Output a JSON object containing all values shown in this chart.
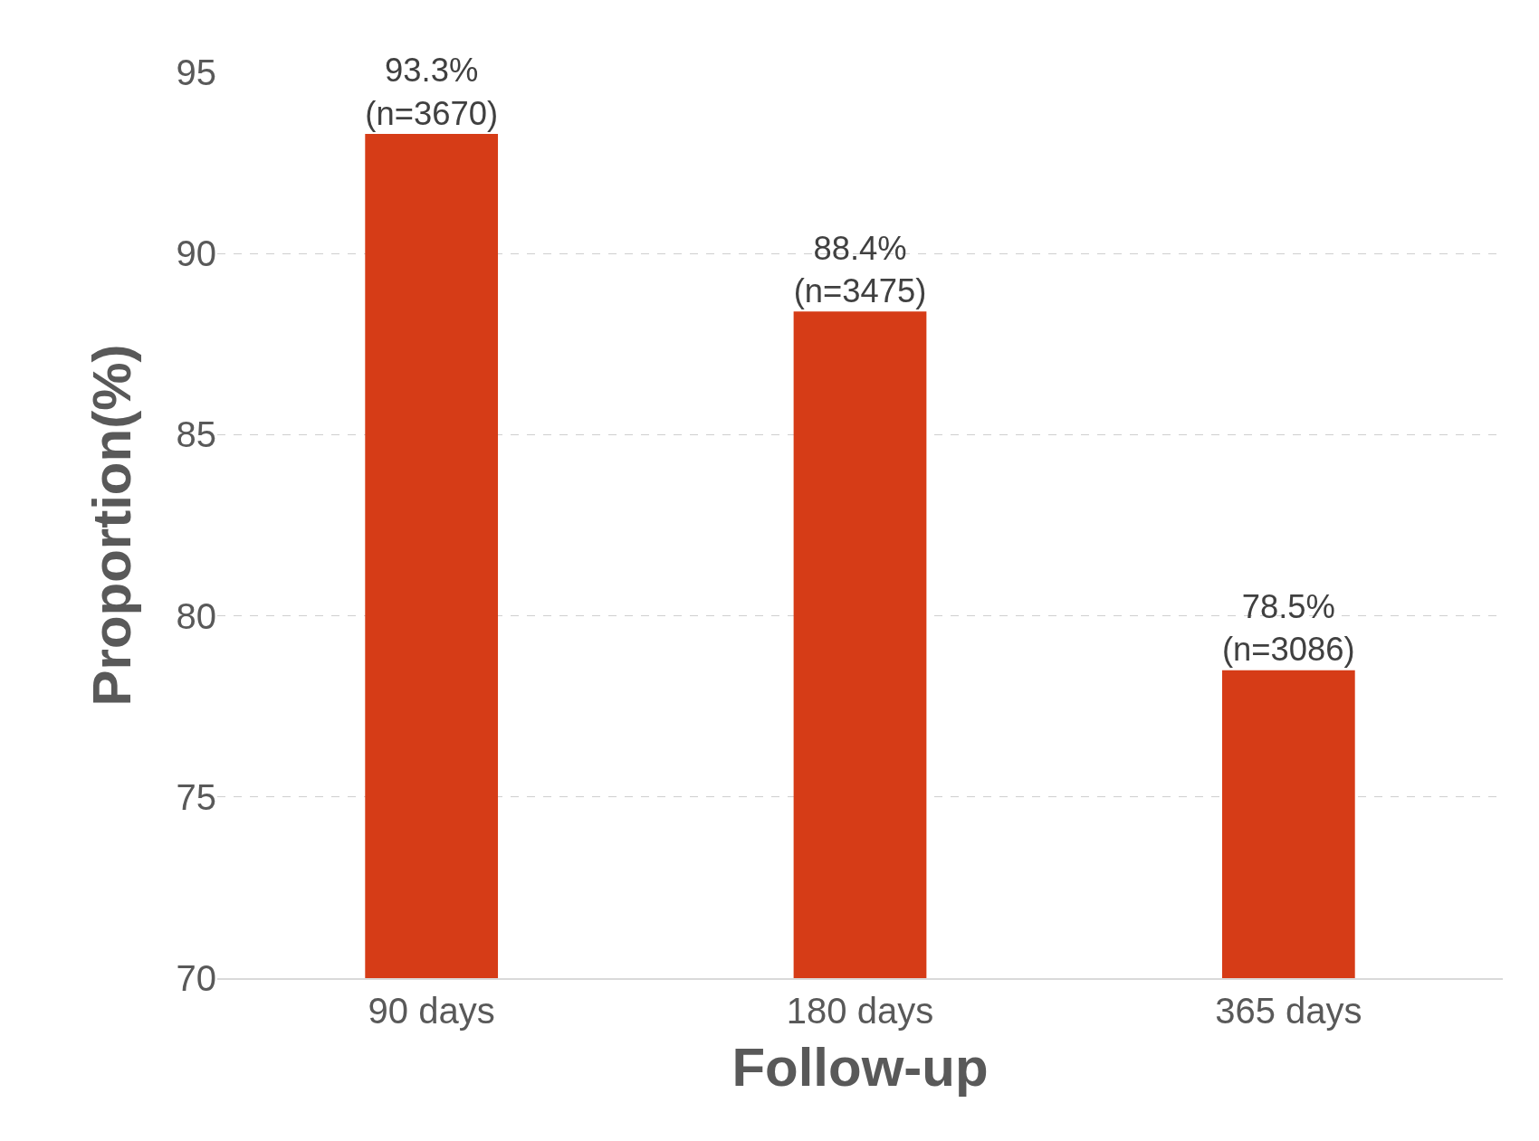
{
  "chart_data": {
    "type": "bar",
    "xlabel": "Follow-up",
    "ylabel": "Proportion(%)",
    "categories": [
      "90 days",
      "180 days",
      "365 days"
    ],
    "values": [
      93.3,
      88.4,
      78.5
    ],
    "value_labels": [
      "93.3%\n(n=3670)",
      "88.4%\n(n=3475)",
      "78.5%\n(n=3086)"
    ],
    "color": "#d63c17",
    "ylim": [
      70,
      95
    ],
    "yticks": [
      70,
      75,
      80,
      85,
      90,
      95
    ],
    "grid": "y",
    "line_style": "dashed",
    "legend": false
  }
}
